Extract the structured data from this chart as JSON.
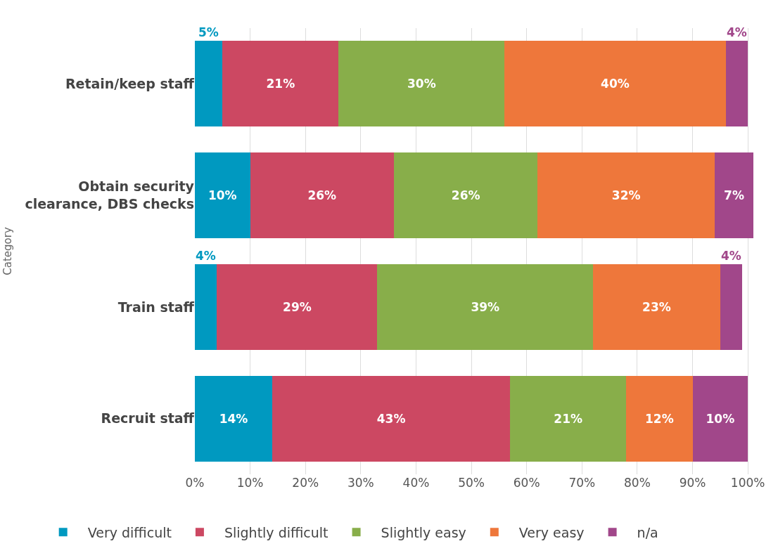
{
  "chart_data": {
    "type": "bar",
    "orientation": "horizontal",
    "stacked": true,
    "ylabel": "Category",
    "categories": [
      "Retain/keep staff",
      "Obtain security clearance, DBS checks",
      "Train staff",
      "Recruit staff"
    ],
    "series": [
      {
        "name": "Very difficult",
        "color": "#0099c0",
        "values": [
          5,
          10,
          4,
          14
        ],
        "value_labels": [
          "5%",
          "10%",
          "4%",
          "14%"
        ]
      },
      {
        "name": "Slightly difficult",
        "color": "#cc4862",
        "values": [
          21,
          26,
          29,
          43
        ],
        "value_labels": [
          "21%",
          "26%",
          "29%",
          "43%"
        ]
      },
      {
        "name": "Slightly easy",
        "color": "#88ae4a",
        "values": [
          30,
          26,
          39,
          21
        ],
        "value_labels": [
          "30%",
          "26%",
          "39%",
          "21%"
        ]
      },
      {
        "name": "Very easy",
        "color": "#ee773b",
        "values": [
          40,
          32,
          23,
          12
        ],
        "value_labels": [
          "40%",
          "32%",
          "23%",
          "12%"
        ]
      },
      {
        "name": "n/a",
        "color": "#a1478a",
        "values": [
          4,
          7,
          4,
          10
        ],
        "value_labels": [
          "4%",
          "7%",
          "4%",
          "10%"
        ]
      }
    ],
    "xlim": [
      0,
      101
    ],
    "xticks": [
      {
        "value": 0,
        "label": "0%"
      },
      {
        "value": 10,
        "label": "10%"
      },
      {
        "value": 20,
        "label": "20%"
      },
      {
        "value": 30,
        "label": "30%"
      },
      {
        "value": 40,
        "label": "40%"
      },
      {
        "value": 50,
        "label": "50%"
      },
      {
        "value": 60,
        "label": "60%"
      },
      {
        "value": 70,
        "label": "70%"
      },
      {
        "value": 80,
        "label": "80%"
      },
      {
        "value": 90,
        "label": "90%"
      },
      {
        "value": 100,
        "label": "100%"
      }
    ],
    "grid": "x",
    "legend": "bottom"
  }
}
